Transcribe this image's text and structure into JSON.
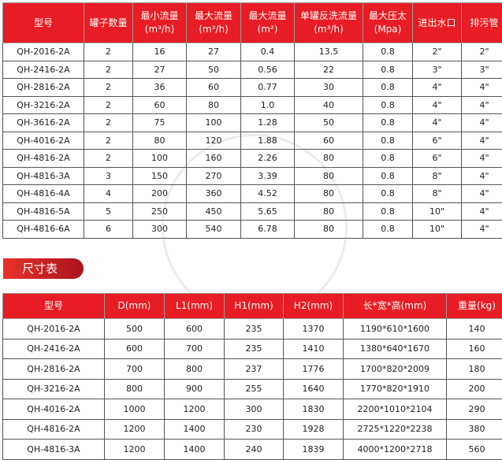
{
  "spec_table": {
    "headers": [
      [
        "型号"
      ],
      [
        "罐子数量"
      ],
      [
        "最小流量",
        "(m³/h)"
      ],
      [
        "最大流量",
        "(m³/h)"
      ],
      [
        "最大流量",
        "(m²)"
      ],
      [
        "单罐反洗流量",
        "(m³/h)"
      ],
      [
        "最大压太",
        "(Mpa)"
      ],
      [
        "进出水口"
      ],
      [
        "排污管"
      ]
    ],
    "rows": [
      [
        "QH-2016-2A",
        "2",
        "16",
        "27",
        "0.4",
        "13.5",
        "0.8",
        "2\"",
        "2\""
      ],
      [
        "QH-2416-2A",
        "2",
        "27",
        "50",
        "0.56",
        "22",
        "0.8",
        "3\"",
        "3\""
      ],
      [
        "QH-2816-2A",
        "2",
        "36",
        "60",
        "0.77",
        "30",
        "0.8",
        "4\"",
        "4\""
      ],
      [
        "QH-3216-2A",
        "2",
        "60",
        "80",
        "1.0",
        "40",
        "0.8",
        "4\"",
        "4\""
      ],
      [
        "QH-3616-2A",
        "2",
        "75",
        "100",
        "1.28",
        "50",
        "0.8",
        "4\"",
        "4\""
      ],
      [
        "QH-4016-2A",
        "2",
        "80",
        "120",
        "1.88",
        "60",
        "0.8",
        "6\"",
        "4\""
      ],
      [
        "QH-4816-2A",
        "2",
        "100",
        "160",
        "2.26",
        "80",
        "0.8",
        "6\"",
        "4\""
      ],
      [
        "QH-4816-3A",
        "3",
        "150",
        "270",
        "3.39",
        "80",
        "0.8",
        "8\"",
        "4\""
      ],
      [
        "QH-4816-4A",
        "4",
        "200",
        "360",
        "4.52",
        "80",
        "0.8",
        "8\"",
        "4\""
      ],
      [
        "QH-4816-5A",
        "5",
        "250",
        "450",
        "5.65",
        "80",
        "0.8",
        "10\"",
        "4\""
      ],
      [
        "QH-4816-6A",
        "6",
        "300",
        "540",
        "6.78",
        "80",
        "0.8",
        "10\"",
        "4\""
      ]
    ]
  },
  "size_section": {
    "title": "尺寸表"
  },
  "size_table": {
    "headers": [
      "型号",
      "D(mm)",
      "L1(mm)",
      "H1(mm)",
      "H2(mm)",
      "长*宽*高(mm)",
      "重量(kg)"
    ],
    "rows": [
      [
        "QH-2016-2A",
        "500",
        "600",
        "235",
        "1370",
        "1190*610*1600",
        "140"
      ],
      [
        "QH-2416-2A",
        "600",
        "700",
        "235",
        "1410",
        "1380*640*1670",
        "160"
      ],
      [
        "QH-2816-2A",
        "700",
        "800",
        "237",
        "1776",
        "1700*820*2009",
        "180"
      ],
      [
        "QH-3216-2A",
        "800",
        "900",
        "255",
        "1640",
        "1770*820*1910",
        "200"
      ],
      [
        "QH-4016-2A",
        "1000",
        "1200",
        "300",
        "1830",
        "2200*1010*2104",
        "290"
      ],
      [
        "QH-4816-2A",
        "1200",
        "1400",
        "230",
        "1928",
        "2725*1220*2238",
        "380"
      ],
      [
        "QH-4816-3A",
        "1200",
        "1400",
        "240",
        "1839",
        "4000*1200*2718",
        "560"
      ]
    ]
  },
  "colors": {
    "header_red": "#e81c24"
  }
}
